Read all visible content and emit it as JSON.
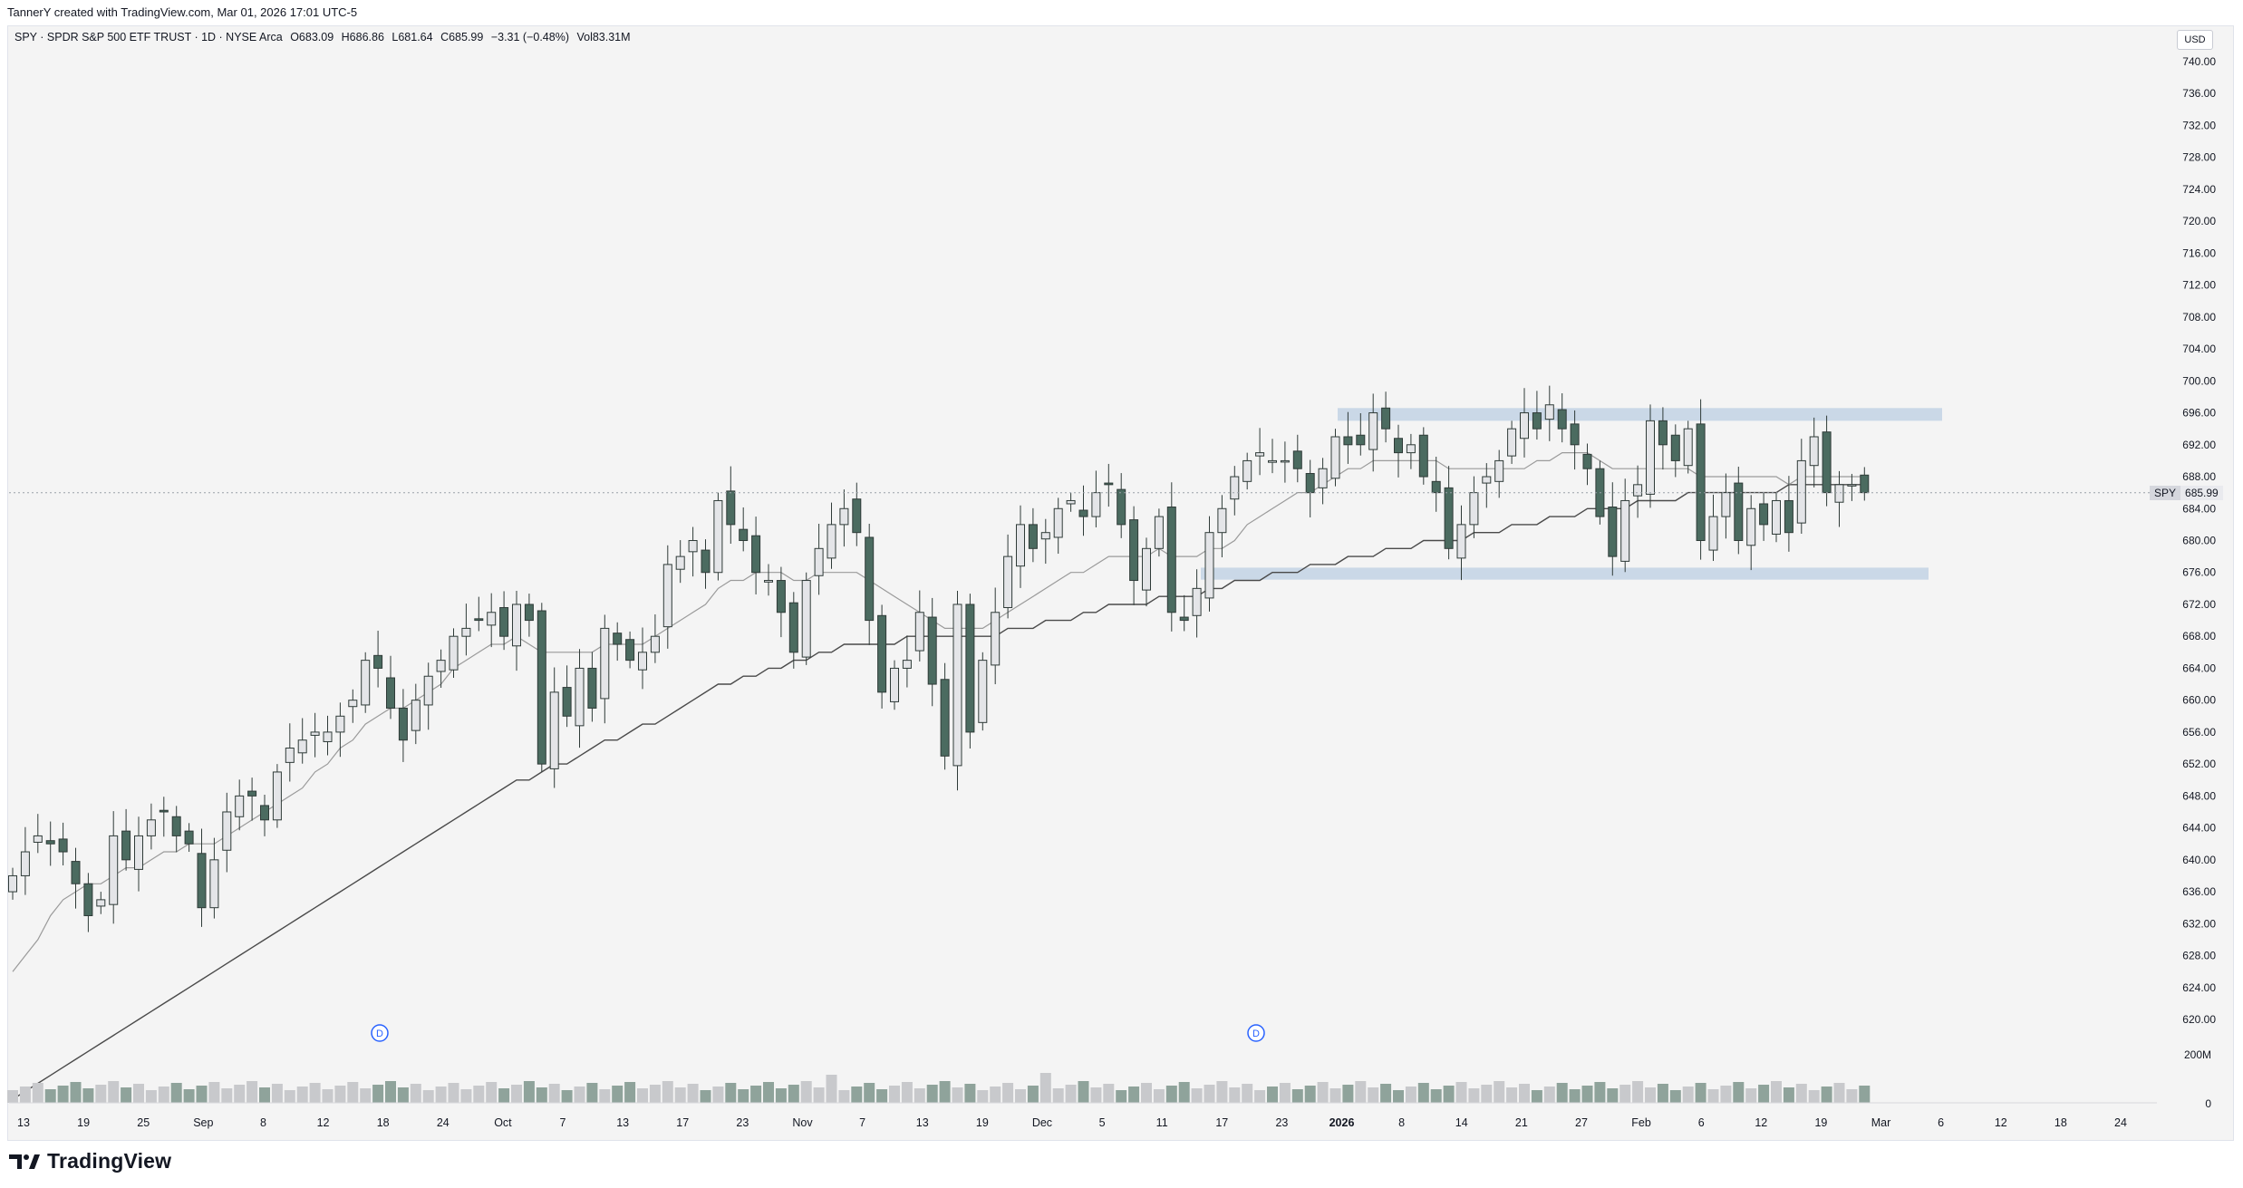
{
  "header": {
    "attribution": "TannerY created with TradingView.com, Mar 01, 2026 17:01 UTC-5"
  },
  "legend": {
    "symbol_line": "SPY · SPDR S&P 500 ETF TRUST · 1D · NYSE Arca",
    "open": "O683.09",
    "high": "H686.86",
    "low": "L681.64",
    "close": "C685.99",
    "change": "−3.31 (−0.48%)",
    "volume": "Vol83.31M"
  },
  "axis": {
    "currency": "USD",
    "last_symbol": "SPY",
    "last_price": "685.99"
  },
  "brand": {
    "name": "TradingView"
  },
  "colors": {
    "up": "#e4e5e8",
    "down": "#4b6b60",
    "zone": "#c5d5e6",
    "ma_fast": "#9a9a9a",
    "ma_slow": "#4a4a4a"
  },
  "chart_data": {
    "type": "candlestick",
    "title": "SPY · SPDR S&P 500 ETF TRUST · 1D · NYSE Arca",
    "ylabel": "USD",
    "ylim": [
      618,
      742
    ],
    "y_ticks": [
      "740.00",
      "736.00",
      "732.00",
      "728.00",
      "724.00",
      "720.00",
      "716.00",
      "712.00",
      "708.00",
      "704.00",
      "700.00",
      "696.00",
      "692.00",
      "688.00",
      "684.00",
      "680.00",
      "676.00",
      "672.00",
      "668.00",
      "664.00",
      "660.00",
      "656.00",
      "652.00",
      "648.00",
      "644.00",
      "640.00",
      "636.00",
      "632.00",
      "628.00",
      "624.00",
      "620.00"
    ],
    "x_ticks": [
      "13",
      "19",
      "25",
      "Sep",
      "8",
      "12",
      "18",
      "24",
      "Oct",
      "7",
      "13",
      "17",
      "23",
      "Nov",
      "7",
      "13",
      "19",
      "Dec",
      "5",
      "11",
      "17",
      "23",
      "2026",
      "8",
      "14",
      "21",
      "27",
      "Feb",
      "6",
      "12",
      "19",
      "Mar",
      "6",
      "12",
      "18",
      "24"
    ],
    "volume_ticks": [
      "200M",
      "0"
    ],
    "zones": [
      {
        "low": 695,
        "high": 696.6
      },
      {
        "low": 675.1,
        "high": 676.6
      }
    ],
    "dividend_markers": [
      "D",
      "D"
    ],
    "closes": [
      638,
      641,
      643,
      642,
      641,
      637,
      633,
      635,
      643,
      640,
      643,
      645,
      646,
      643,
      642,
      634,
      640,
      646,
      648,
      648,
      645,
      651,
      654,
      655,
      656,
      656,
      658,
      660,
      665,
      664,
      659,
      655,
      660,
      663,
      665,
      668,
      669,
      670,
      671,
      668,
      672,
      670,
      652,
      661,
      658,
      664,
      659,
      669,
      667,
      665,
      666,
      668,
      677,
      678,
      680,
      676,
      685,
      682,
      680,
      676,
      675,
      671,
      666,
      675,
      679,
      682,
      684,
      681,
      670,
      661,
      664,
      665,
      671,
      662,
      653,
      672,
      656,
      665,
      671,
      678,
      682,
      679,
      681,
      684,
      685,
      683,
      686,
      687,
      682,
      675,
      679,
      683,
      671,
      670,
      674,
      681,
      684,
      688,
      690,
      691,
      690,
      690,
      689,
      686,
      689,
      693,
      692,
      692,
      696,
      694,
      691,
      692,
      688,
      686,
      679,
      682,
      686,
      688,
      690,
      694,
      696,
      694,
      697,
      694,
      692,
      689,
      683,
      678,
      685,
      687,
      695,
      692,
      690,
      694,
      680,
      683,
      686,
      680,
      684,
      682,
      685,
      681,
      690,
      693,
      686,
      687,
      687,
      686
    ],
    "ma_fast": [
      626,
      628,
      630,
      633,
      635,
      636,
      637,
      637,
      638,
      639,
      639,
      640,
      641,
      641,
      642,
      642,
      642,
      643,
      644,
      645,
      646,
      647,
      648,
      649,
      651,
      652,
      654,
      655,
      657,
      658,
      659,
      659,
      660,
      661,
      662,
      664,
      665,
      666,
      667,
      667,
      668,
      667,
      666,
      666,
      666,
      666,
      666,
      667,
      667,
      667,
      667,
      668,
      669,
      670,
      671,
      672,
      674,
      675,
      675,
      676,
      676,
      676,
      675,
      675,
      676,
      676,
      676,
      676,
      675,
      674,
      673,
      672,
      671,
      670,
      669,
      669,
      669,
      669,
      670,
      671,
      672,
      673,
      674,
      675,
      676,
      676,
      677,
      678,
      678,
      678,
      678,
      679,
      678,
      678,
      678,
      679,
      679,
      680,
      682,
      683,
      684,
      685,
      686,
      686,
      687,
      688,
      689,
      689,
      690,
      690,
      690,
      690,
      690,
      690,
      689,
      689,
      689,
      689,
      689,
      689,
      689,
      690,
      690,
      691,
      691,
      691,
      690,
      689,
      689,
      689,
      689,
      689,
      689,
      689,
      688,
      688,
      688,
      688,
      688,
      688,
      688,
      687,
      688,
      688,
      688,
      688,
      688,
      688
    ],
    "ma_slow": [
      610,
      611,
      612,
      613,
      614,
      615,
      616,
      617,
      618,
      619,
      620,
      621,
      622,
      623,
      624,
      625,
      626,
      627,
      628,
      629,
      630,
      631,
      632,
      633,
      634,
      635,
      636,
      637,
      638,
      639,
      640,
      641,
      642,
      643,
      644,
      645,
      646,
      647,
      648,
      649,
      650,
      650,
      651,
      652,
      652,
      653,
      654,
      655,
      655,
      656,
      657,
      657,
      658,
      659,
      660,
      661,
      662,
      662,
      663,
      663,
      664,
      664,
      665,
      665,
      666,
      666,
      667,
      667,
      667,
      667,
      667,
      668,
      668,
      668,
      668,
      668,
      668,
      668,
      668,
      669,
      669,
      669,
      670,
      670,
      670,
      671,
      671,
      672,
      672,
      672,
      672,
      673,
      673,
      673,
      673,
      674,
      674,
      675,
      675,
      675,
      676,
      676,
      676,
      677,
      677,
      677,
      678,
      678,
      678,
      679,
      679,
      679,
      680,
      680,
      680,
      680,
      681,
      681,
      681,
      682,
      682,
      682,
      683,
      683,
      683,
      684,
      684,
      684,
      684,
      685,
      685,
      685,
      685,
      686,
      686,
      686,
      686,
      686,
      686,
      686,
      686,
      687,
      687,
      687,
      687,
      687,
      687,
      687
    ],
    "last": {
      "open": 683.09,
      "high": 686.86,
      "low": 681.64,
      "close": 685.99,
      "change": -3.31,
      "change_pct": -0.48,
      "volume": "83.31M"
    }
  }
}
